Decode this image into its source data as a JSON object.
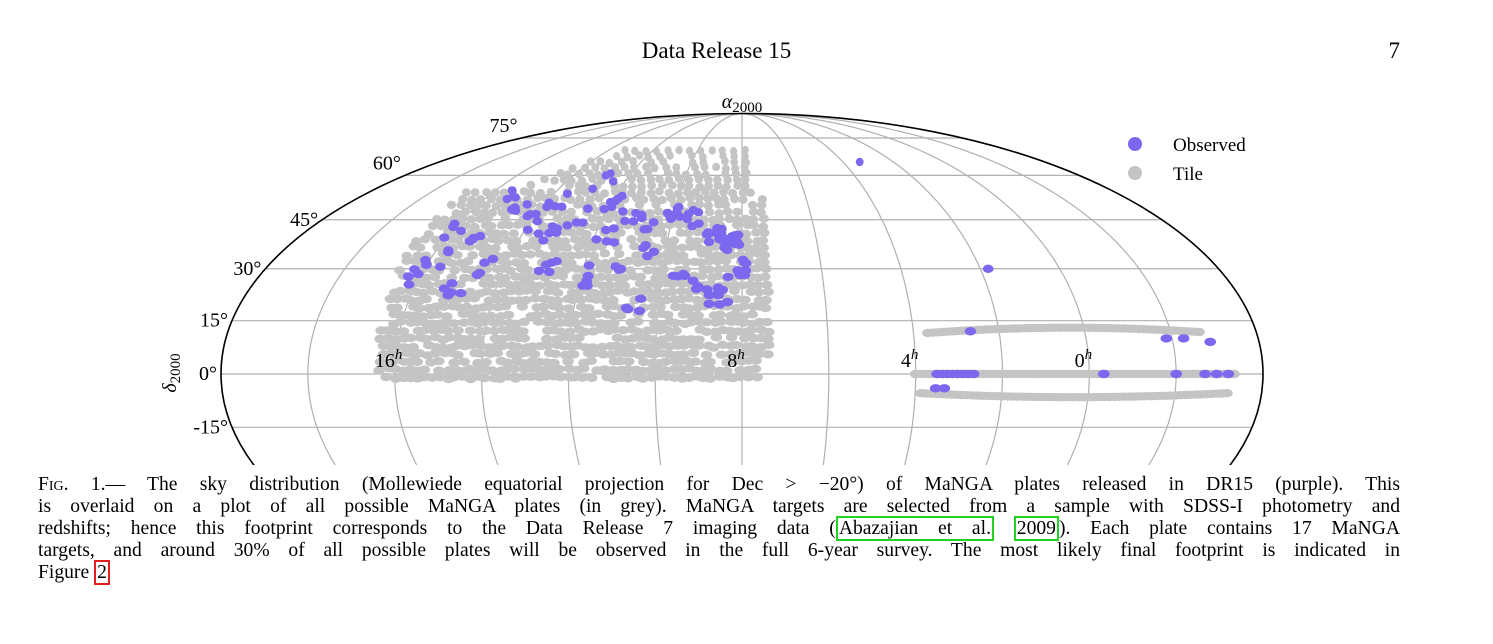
{
  "header": {
    "running_title": "Data Release 15",
    "page_number": "7"
  },
  "figure": {
    "projection": "Mollweide",
    "colors": {
      "observed": "#7b68ee",
      "tile": "#c4c4c4",
      "grid": "#b0b0b0",
      "boundary": "#000000"
    },
    "alpha_label": "α",
    "alpha_sub": "2000",
    "delta_label": "δ",
    "delta_sub": "2000",
    "dec_labels": [
      {
        "text": "75°",
        "dec": 75
      },
      {
        "text": "60°",
        "dec": 60
      },
      {
        "text": "45°",
        "dec": 45
      },
      {
        "text": "30°",
        "dec": 30
      },
      {
        "text": "15°",
        "dec": 15
      },
      {
        "text": "0°",
        "dec": 0
      },
      {
        "text": "-15°",
        "dec": -15
      }
    ],
    "ra_labels": [
      {
        "base": "16",
        "sup": "h",
        "ra_hours": 16
      },
      {
        "base": "8",
        "sup": "h",
        "ra_hours": 8
      },
      {
        "base": "4",
        "sup": "h",
        "ra_hours": 4
      },
      {
        "base": "0",
        "sup": "h",
        "ra_hours": 0
      }
    ],
    "legend": [
      {
        "label": "Observed",
        "color": "#7b68ee"
      },
      {
        "label": "Tile",
        "color": "#c4c4c4"
      }
    ]
  },
  "caption": {
    "fig_label": "Fig. 1.",
    "lines": [
      "— The sky distribution (Mollewiede equatorial projection for Dec > −20°) of MaNGA plates released in DR15 (purple). This",
      "is overlaid on a plot of all possible MaNGA plates (in grey). MaNGA targets are selected from a sample with SDSS-I photometry and",
      "redshifts; hence this footprint corresponds to the Data Release 7 imaging data (",
      "). Each plate contains 17 MaNGA",
      "targets, and around 30% of all possible plates will be observed in the full 6-year survey. The most likely final footprint is indicated in",
      "Figure "
    ],
    "cite_author": "Abazajian et al.",
    "cite_year": "2009",
    "figure_ref": "2"
  }
}
